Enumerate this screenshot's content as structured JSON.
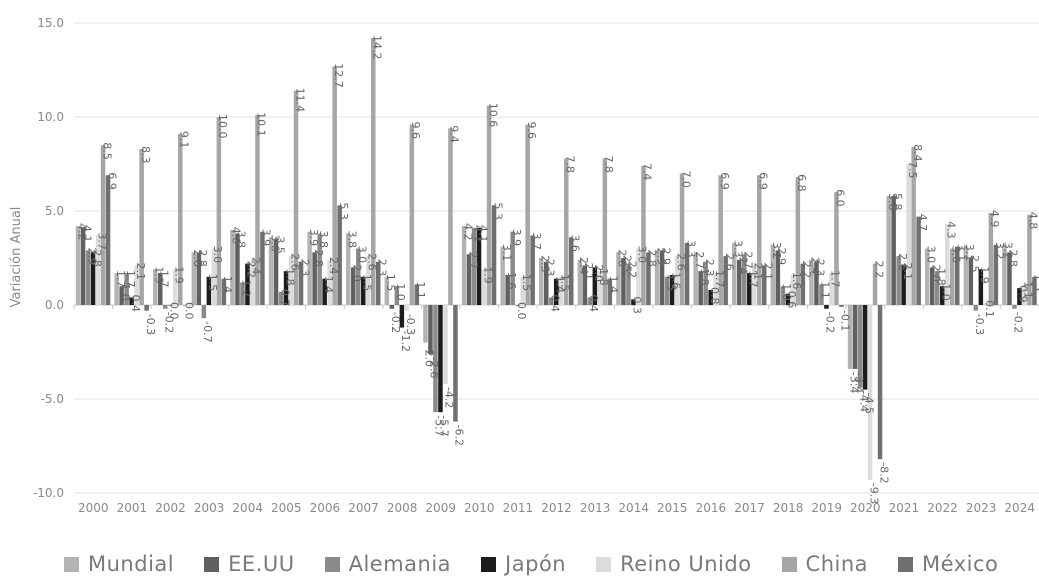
{
  "chart_data": {
    "type": "bar",
    "ylabel": "Variación Anual",
    "ylim": [
      -10,
      15
    ],
    "yticks": [
      "-10.0",
      "-5.0",
      "0.0",
      "5.0",
      "10.0",
      "15.0"
    ],
    "grid": true,
    "legend_position": "bottom",
    "categories": [
      "2000",
      "2001",
      "2002",
      "2003",
      "2004",
      "2005",
      "2006",
      "2007",
      "2008",
      "2009",
      "2010",
      "2011",
      "2012",
      "2013",
      "2014",
      "2015",
      "2016",
      "2017",
      "2018",
      "2019",
      "2020",
      "2021",
      "2022",
      "2023",
      "2024"
    ],
    "series": [
      {
        "name": "Mundial",
        "color": "#b3b3b3",
        "values": [
          4.2,
          1.7,
          1.9,
          2.8,
          4.0,
          3.6,
          3.9,
          3.8,
          1.5,
          -2.0,
          4.2,
          3.1,
          2.5,
          2.4,
          2.8,
          2.9,
          2.7,
          3.3,
          3.2,
          2.4,
          -3.4,
          5.8,
          3.0,
          3.1,
          3.2
        ]
      },
      {
        "name": "EE.UU",
        "color": "#606060",
        "values": [
          4.1,
          1.0,
          1.7,
          2.8,
          3.8,
          3.5,
          2.8,
          2.0,
          -0.2,
          -2.6,
          2.7,
          1.6,
          2.3,
          2.1,
          2.5,
          2.9,
          1.8,
          2.4,
          2.9,
          2.3,
          -3.4,
          5.8,
          2.0,
          2.5,
          2.8
        ]
      },
      {
        "name": "Alemania",
        "color": "#8a8a8a",
        "values": [
          2.9,
          1.7,
          -0.2,
          -0.7,
          1.2,
          0.7,
          3.8,
          3.0,
          1.0,
          -5.7,
          4.1,
          3.9,
          0.4,
          0.4,
          2.2,
          1.5,
          2.3,
          2.7,
          1.0,
          1.1,
          -4.4,
          2.6,
          1.8,
          -0.3,
          -0.2
        ]
      },
      {
        "name": "Japón",
        "color": "#1c1c1c",
        "values": [
          2.8,
          0.4,
          0.0,
          1.5,
          2.2,
          1.8,
          1.4,
          1.5,
          -1.2,
          -5.7,
          4.1,
          0.0,
          1.4,
          2.0,
          0.3,
          1.6,
          0.8,
          1.7,
          0.6,
          -0.2,
          -4.5,
          2.1,
          1.0,
          1.9,
          0.9
        ]
      },
      {
        "name": "Reino Unido",
        "color": "#dcdcdc",
        "values": [
          3.7,
          2.1,
          1.9,
          3.0,
          2.4,
          2.6,
          2.4,
          2.6,
          -0.3,
          -4.2,
          1.9,
          1.5,
          1.5,
          1.8,
          3.0,
          2.6,
          1.7,
          2.1,
          1.6,
          1.7,
          -9.3,
          7.5,
          4.3,
          0.1,
          1.1
        ]
      },
      {
        "name": "China",
        "color": "#a6a6a6",
        "values": [
          8.5,
          8.3,
          9.1,
          10.0,
          10.1,
          11.4,
          12.7,
          14.2,
          9.6,
          9.4,
          10.6,
          9.6,
          7.8,
          7.8,
          7.4,
          7.0,
          6.9,
          6.9,
          6.8,
          6.0,
          2.2,
          8.4,
          3.0,
          4.9,
          4.8
        ]
      },
      {
        "name": "México",
        "color": "#707070",
        "values": [
          6.9,
          -0.3,
          0.0,
          1.4,
          3.9,
          2.3,
          5.3,
          2.3,
          1.1,
          -6.2,
          5.3,
          3.7,
          3.6,
          1.4,
          2.8,
          3.3,
          2.6,
          2.1,
          2.2,
          -0.1,
          -8.2,
          4.7,
          3.1,
          3.2,
          1.5
        ]
      }
    ]
  }
}
